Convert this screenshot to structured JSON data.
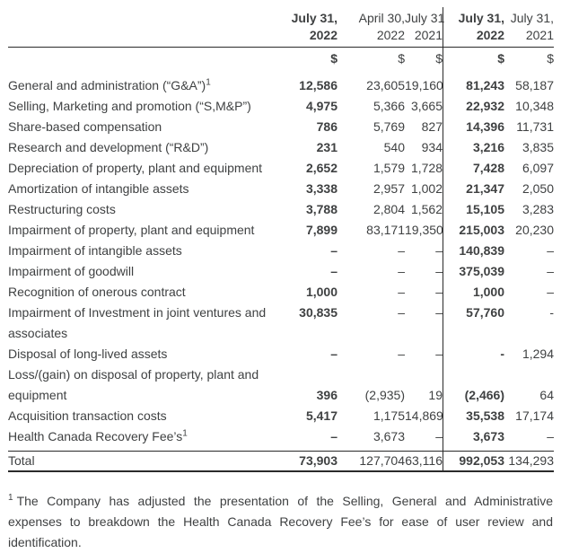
{
  "document": {
    "header": {
      "columns": [
        {
          "line1": "July 31,",
          "line2": "2022",
          "currency": "$",
          "bold": true
        },
        {
          "line1": "April 30,",
          "line2": "2022",
          "currency": "$",
          "bold": false
        },
        {
          "line1": "July 31,",
          "line2": "2021",
          "currency": "$",
          "bold": false
        },
        {
          "line1": "July 31,",
          "line2": "2022",
          "currency": "$",
          "bold": true
        },
        {
          "line1": "July 31,",
          "line2": "2021",
          "currency": "$",
          "bold": false
        }
      ]
    },
    "rows": [
      {
        "label": "General and administration (“G&A”)",
        "sup": "1",
        "values": [
          "12,586",
          "23,605",
          "19,160",
          "81,243",
          "58,187"
        ]
      },
      {
        "label": "Selling, Marketing and promotion (“S,M&P”)",
        "values": [
          "4,975",
          "5,366",
          "3,665",
          "22,932",
          "10,348"
        ]
      },
      {
        "label": "Share-based compensation",
        "values": [
          "786",
          "5,769",
          "827",
          "14,396",
          "11,731"
        ]
      },
      {
        "label": "Research and development (“R&D”)",
        "values": [
          "231",
          "540",
          "934",
          "3,216",
          "3,835"
        ]
      },
      {
        "label": "Depreciation of property, plant and equipment",
        "values": [
          "2,652",
          "1,579",
          "1,728",
          "7,428",
          "6,097"
        ]
      },
      {
        "label": "Amortization of intangible assets",
        "values": [
          "3,338",
          "2,957",
          "1,002",
          "21,347",
          "2,050"
        ]
      },
      {
        "label": "Restructuring costs",
        "values": [
          "3,788",
          "2,804",
          "1,562",
          "15,105",
          "3,283"
        ]
      },
      {
        "label": "Impairment of property, plant and equipment",
        "values": [
          "7,899",
          "83,171",
          "19,350",
          "215,003",
          "20,230"
        ]
      },
      {
        "label": "Impairment of intangible assets",
        "values": [
          "–",
          "–",
          "–",
          "140,839",
          "–"
        ]
      },
      {
        "label": "Impairment of goodwill",
        "values": [
          "–",
          "–",
          "–",
          "375,039",
          "–"
        ]
      },
      {
        "label": "Recognition of onerous contract",
        "values": [
          "1,000",
          "–",
          "–",
          "1,000",
          "–"
        ]
      },
      {
        "label": "Impairment of Investment in joint ventures and",
        "label2": "associates",
        "values_on": "first",
        "values": [
          "30,835",
          "–",
          "–",
          "57,760",
          "-"
        ]
      },
      {
        "label": "Disposal of long-lived assets",
        "values": [
          "–",
          "–",
          "–",
          "-",
          "1,294"
        ]
      },
      {
        "label": "Loss/(gain) on disposal of property, plant and",
        "label2": "equipment",
        "values_on": "second",
        "values": [
          "396",
          "(2,935)",
          "19",
          "(2,466)",
          "64"
        ]
      },
      {
        "label": "Acquisition transaction costs",
        "values": [
          "5,417",
          "1,175",
          "14,869",
          "35,538",
          "17,174"
        ]
      },
      {
        "label": "Health Canada Recovery Fee’s",
        "sup": "1",
        "values": [
          "–",
          "3,673",
          "–",
          "3,673",
          "–"
        ]
      }
    ],
    "total": {
      "label": "Total",
      "values": [
        "73,903",
        "127,704",
        "63,116",
        "992,053",
        "134,293"
      ]
    },
    "footnote": {
      "sup": "1",
      "text": "The Company has adjusted the presentation of the Selling, General and Administrative expenses to breakdown the Health Canada Recovery Fee’s for ease of user review and identification."
    },
    "colors": {
      "text": "#3f4142",
      "rule": "#2a2a2a",
      "background": "#ffffff"
    }
  }
}
